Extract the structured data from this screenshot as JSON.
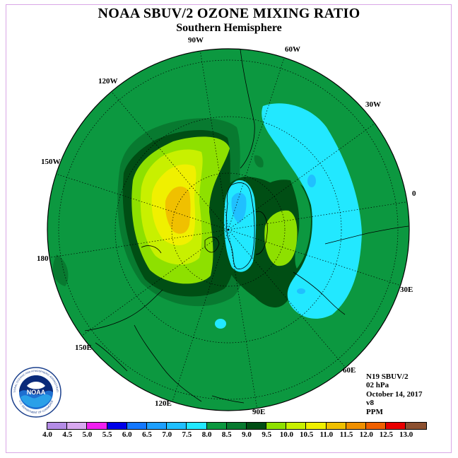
{
  "title": "NOAA SBUV/2 OZONE MIXING RATIO",
  "subtitle": "Southern Hemisphere",
  "longitude_labels": [
    "90W",
    "60W",
    "30W",
    "0",
    "30E",
    "60E",
    "90E",
    "120E",
    "150E",
    "180",
    "150W",
    "120W"
  ],
  "info": {
    "satellite": "N19 SBUV/2",
    "level": "02 hPa",
    "date": "October 14, 2017",
    "version": "v8",
    "units": "PPM"
  },
  "logo": {
    "label": "NOAA",
    "ring_text_top": "NATIONAL OCEANIC AND ATMOSPHERIC ADMINISTRATION",
    "ring_text_bottom": "U.S. DEPARTMENT OF COMMERCE"
  },
  "colorbar": {
    "labels": [
      "4.0",
      "4.5",
      "5.0",
      "5.5",
      "6.0",
      "6.5",
      "7.0",
      "7.5",
      "8.0",
      "8.5",
      "9.0",
      "9.5",
      "10.0",
      "10.5",
      "11.0",
      "11.5",
      "12.0",
      "12.5",
      "13.0"
    ],
    "colors": [
      "#b48ce6",
      "#d8a8f0",
      "#f020f0",
      "#0000e8",
      "#1478ff",
      "#1ea0ff",
      "#20c0ff",
      "#22e8ff",
      "#0c9840",
      "#087a30",
      "#004e14",
      "#8ee000",
      "#c8f000",
      "#f0f000",
      "#f0c000",
      "#f09000",
      "#f06000",
      "#e80000",
      "#8c5030"
    ]
  },
  "field_colors": {
    "background_8_0": "#0c9840",
    "band_8_5": "#087a30",
    "band_9_0": "#004e14",
    "band_7_5": "#22e8ff",
    "band_7_0": "#20c0ff",
    "band_9_5": "#8ee000",
    "band_10_0": "#c8f000",
    "band_10_5": "#f0f000",
    "band_11_0": "#f0c000"
  }
}
